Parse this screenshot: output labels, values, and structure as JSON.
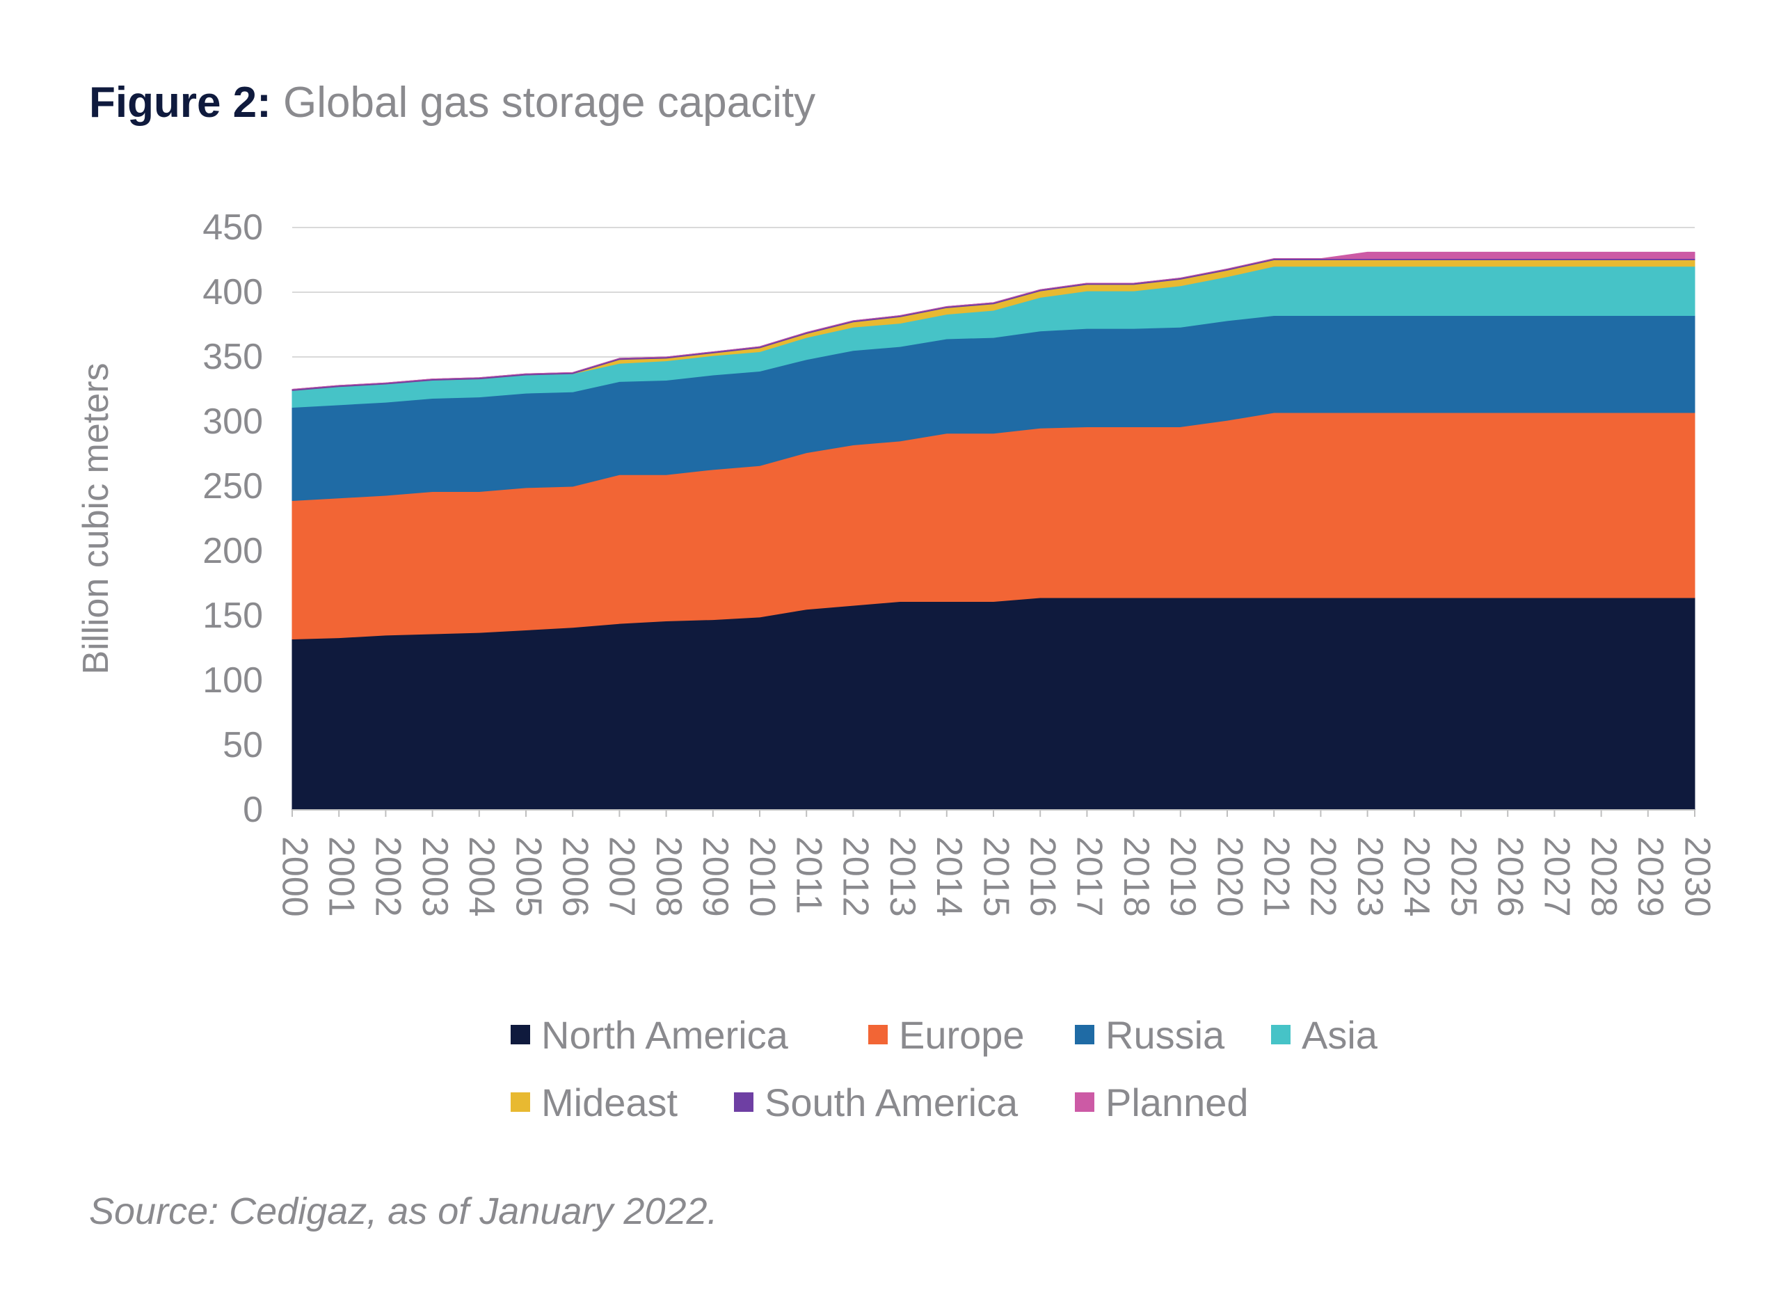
{
  "header": {
    "title_prefix": "Figure 2:",
    "title_text": "Global gas storage capacity"
  },
  "source_note": "Source: Cedigaz, as of January 2022.",
  "chart_data": {
    "type": "area",
    "stacked": true,
    "title": "Figure 2: Global gas storage capacity",
    "xlabel": "",
    "ylabel": "Billion cubic meters",
    "ylim": [
      0,
      450
    ],
    "yticks": [
      0,
      50,
      100,
      150,
      200,
      250,
      300,
      350,
      400,
      450
    ],
    "grid": "horizontal",
    "legend_position": "bottom",
    "x": [
      "2000",
      "2001",
      "2002",
      "2003",
      "2004",
      "2005",
      "2006",
      "2007",
      "2008",
      "2009",
      "2010",
      "2011",
      "2012",
      "2013",
      "2014",
      "2015",
      "2016",
      "2017",
      "2018",
      "2019",
      "2020",
      "2021",
      "2022",
      "2023",
      "2024",
      "2025",
      "2026",
      "2027",
      "2028",
      "2029",
      "2030"
    ],
    "series": [
      {
        "name": "North America",
        "color": "#0f1a3d",
        "values": [
          132,
          133,
          135,
          136,
          137,
          139,
          141,
          144,
          146,
          147,
          149,
          155,
          158,
          161,
          161,
          161,
          164,
          164,
          164,
          164,
          164,
          164,
          164,
          164,
          164,
          164,
          164,
          164,
          164,
          164,
          164
        ]
      },
      {
        "name": "Europe",
        "color": "#f26535",
        "values": [
          107,
          108,
          108,
          110,
          109,
          110,
          109,
          115,
          113,
          116,
          117,
          121,
          124,
          124,
          130,
          130,
          131,
          132,
          132,
          132,
          137,
          143,
          143,
          143,
          143,
          143,
          143,
          143,
          143,
          143,
          143
        ]
      },
      {
        "name": "Russia",
        "color": "#1f6ba5",
        "values": [
          72,
          72,
          72,
          72,
          73,
          73,
          73,
          72,
          73,
          73,
          73,
          72,
          73,
          73,
          73,
          74,
          75,
          76,
          76,
          77,
          77,
          75,
          75,
          75,
          75,
          75,
          75,
          75,
          75,
          75,
          75
        ]
      },
      {
        "name": "Asia",
        "color": "#46c3c7",
        "values": [
          13,
          14,
          14,
          14,
          14,
          14,
          14,
          14,
          15,
          15,
          15,
          17,
          18,
          18,
          19,
          21,
          26,
          29,
          29,
          32,
          34,
          38,
          38,
          38,
          38,
          38,
          38,
          38,
          38,
          38,
          38
        ]
      },
      {
        "name": "Mideast",
        "color": "#e8b931",
        "values": [
          0,
          0,
          0,
          0,
          0,
          0,
          0,
          3,
          2,
          2,
          3,
          3,
          4,
          5,
          5,
          5,
          5,
          5,
          5,
          5,
          5,
          5,
          5,
          5,
          5,
          5,
          5,
          5,
          5,
          5,
          5
        ]
      },
      {
        "name": "South America",
        "color": "#6e3fa3",
        "values": [
          1,
          1,
          1,
          1,
          1,
          1,
          1,
          1,
          1,
          1,
          1,
          1,
          1,
          1,
          1,
          1,
          1,
          1,
          1,
          1,
          1,
          1,
          1,
          1,
          1,
          1,
          1,
          1,
          1,
          1,
          1
        ]
      },
      {
        "name": "Planned",
        "color": "#cc5aa5",
        "values": [
          0,
          0,
          0,
          0,
          0,
          0,
          0,
          0,
          0,
          0,
          0,
          0,
          0,
          0,
          0,
          0,
          0,
          0,
          0,
          0,
          0,
          0,
          0,
          5,
          5,
          5,
          5,
          5,
          5,
          5,
          5
        ]
      }
    ]
  }
}
